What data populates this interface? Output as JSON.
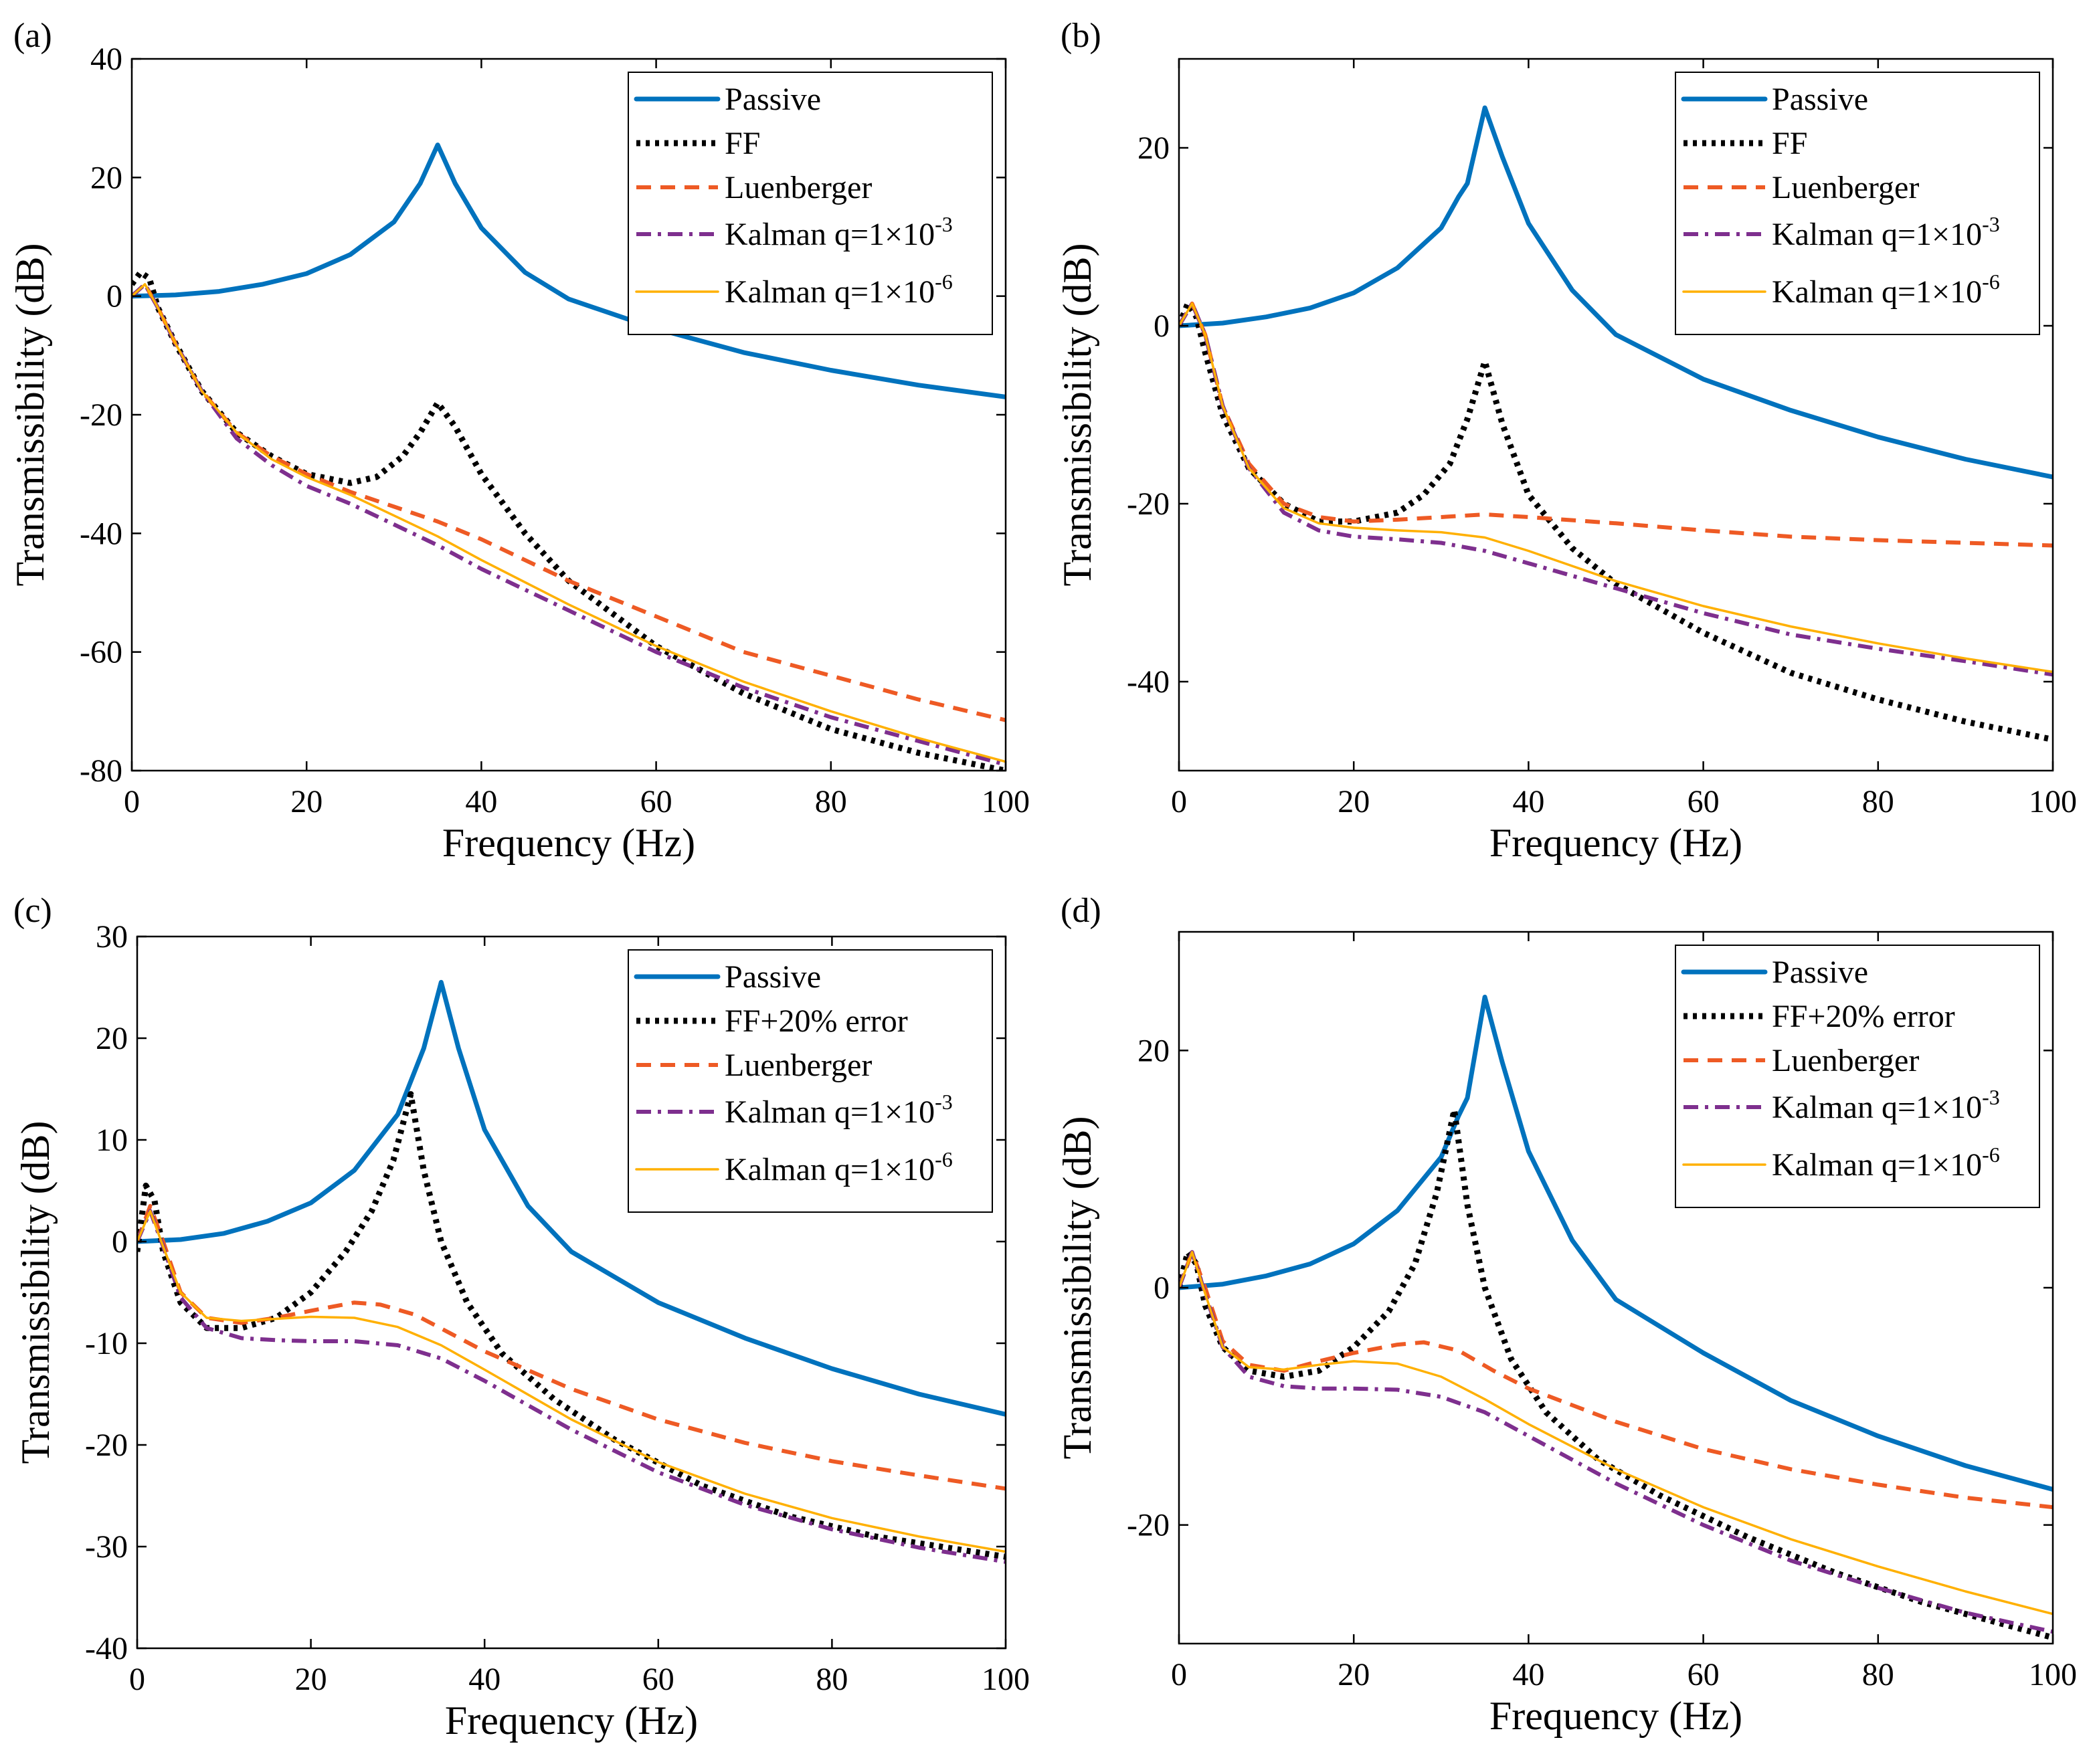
{
  "chart_data": [
    {
      "panel": "(a)",
      "type": "line",
      "xlabel": "Frequency (Hz)",
      "ylabel": "Transmissibility (dB)",
      "xlim": [
        0,
        100
      ],
      "ylim": [
        -80,
        40
      ],
      "xticks": [
        0,
        20,
        40,
        60,
        80,
        100
      ],
      "yticks": [
        -80,
        -60,
        -40,
        -20,
        0,
        20,
        40
      ],
      "legend_position": "top-right",
      "series": [
        {
          "name": "Passive",
          "label_main": "Passive",
          "label_sup": "",
          "color": "#0072BD",
          "style": "solid-thick",
          "x": [
            0,
            5,
            10,
            15,
            20,
            25,
            30,
            33,
            35,
            37,
            40,
            45,
            50,
            60,
            70,
            80,
            90,
            100
          ],
          "y": [
            0,
            0.2,
            0.8,
            2,
            3.8,
            7,
            12.5,
            19,
            25.5,
            19,
            11.5,
            4,
            -0.5,
            -5.5,
            -9.5,
            -12.5,
            -15,
            -17
          ]
        },
        {
          "name": "FF",
          "label_main": "FF",
          "label_sup": "",
          "color": "#000000",
          "style": "dotted",
          "x": [
            0,
            1,
            2,
            3,
            5,
            8,
            12,
            16,
            20,
            25,
            28,
            31,
            33,
            35,
            37,
            40,
            45,
            50,
            60,
            70,
            80,
            90,
            100
          ],
          "y": [
            2,
            4,
            3,
            -2,
            -8,
            -16,
            -23,
            -27,
            -30,
            -31.5,
            -30.5,
            -27,
            -23,
            -18,
            -22,
            -30,
            -40,
            -48,
            -59,
            -67,
            -73,
            -77,
            -80
          ]
        },
        {
          "name": "Luenberger",
          "label_main": "Luenberger",
          "label_sup": "",
          "color": "#EE5A24",
          "style": "dashed",
          "x": [
            0,
            1.5,
            3,
            5,
            8,
            12,
            16,
            20,
            25,
            30,
            35,
            40,
            50,
            60,
            70,
            80,
            90,
            100
          ],
          "y": [
            0,
            2,
            -2,
            -8,
            -16,
            -23,
            -27,
            -30,
            -33,
            -35.5,
            -38,
            -41,
            -48,
            -54,
            -60,
            -64,
            -68,
            -71.5
          ]
        },
        {
          "name": "Kalman q=1×10^-3",
          "label_main": "Kalman q=1×10",
          "label_sup": "-3",
          "color": "#7E2F8E",
          "style": "dashdot",
          "x": [
            0,
            1.5,
            3,
            5,
            8,
            12,
            16,
            20,
            25,
            30,
            35,
            40,
            50,
            60,
            70,
            80,
            90,
            100
          ],
          "y": [
            0,
            2,
            -2,
            -8,
            -16,
            -24,
            -28.5,
            -32,
            -35,
            -38.5,
            -42,
            -46,
            -53,
            -60,
            -66,
            -71,
            -75,
            -79
          ]
        },
        {
          "name": "Kalman q=1×10^-6",
          "label_main": "Kalman q=1×10",
          "label_sup": "-6",
          "color": "#FFB000",
          "style": "solid-thin",
          "x": [
            0,
            1.5,
            3,
            5,
            8,
            12,
            16,
            20,
            25,
            30,
            35,
            40,
            50,
            60,
            70,
            80,
            90,
            100
          ],
          "y": [
            0,
            2,
            -2,
            -8,
            -16,
            -23,
            -27.5,
            -30.5,
            -33.5,
            -37,
            -40.5,
            -44.5,
            -52,
            -59,
            -65,
            -70,
            -74.5,
            -78.5
          ]
        }
      ]
    },
    {
      "panel": "(b)",
      "type": "line",
      "xlabel": "Frequency (Hz)",
      "ylabel": "Transmissibility (dB)",
      "xlim": [
        0,
        100
      ],
      "ylim": [
        -50,
        30
      ],
      "xticks": [
        0,
        20,
        40,
        60,
        80,
        100
      ],
      "yticks": [
        -40,
        -20,
        0,
        20
      ],
      "legend_position": "top-right",
      "series": [
        {
          "name": "Passive",
          "label_main": "Passive",
          "label_sup": "",
          "color": "#0072BD",
          "style": "solid-thick",
          "x": [
            0,
            5,
            10,
            15,
            20,
            25,
            30,
            32,
            33,
            35,
            37,
            40,
            45,
            50,
            60,
            70,
            80,
            90,
            100
          ],
          "y": [
            0,
            0.3,
            1,
            2,
            3.7,
            6.5,
            11,
            14.5,
            16,
            24.5,
            19,
            11.5,
            4,
            -1,
            -6,
            -9.5,
            -12.5,
            -15,
            -17
          ]
        },
        {
          "name": "FF",
          "label_main": "FF",
          "label_sup": "",
          "color": "#000000",
          "style": "dotted",
          "x": [
            0,
            1,
            2,
            3,
            5,
            8,
            12,
            16,
            20,
            25,
            28,
            31,
            33,
            35,
            37,
            40,
            45,
            50,
            60,
            70,
            80,
            90,
            100
          ],
          "y": [
            0,
            2.5,
            1,
            -3,
            -10,
            -16,
            -20,
            -22,
            -22,
            -21,
            -19,
            -15.5,
            -10.5,
            -4,
            -11,
            -19,
            -25,
            -29,
            -34.5,
            -39,
            -42,
            -44.5,
            -46.5
          ]
        },
        {
          "name": "Luenberger",
          "label_main": "Luenberger",
          "label_sup": "",
          "color": "#EE5A24",
          "style": "dashed",
          "x": [
            0,
            1.5,
            3,
            5,
            8,
            12,
            16,
            20,
            25,
            30,
            35,
            40,
            50,
            60,
            70,
            80,
            90,
            100
          ],
          "y": [
            0,
            2.5,
            -1,
            -9,
            -15.5,
            -20,
            -21.5,
            -22,
            -21.8,
            -21.5,
            -21.2,
            -21.5,
            -22.2,
            -23,
            -23.7,
            -24.1,
            -24.4,
            -24.7
          ]
        },
        {
          "name": "Kalman q=1×10^-3",
          "label_main": "Kalman q=1×10",
          "label_sup": "-3",
          "color": "#7E2F8E",
          "style": "dashdot",
          "x": [
            0,
            1.5,
            3,
            5,
            8,
            12,
            16,
            20,
            25,
            30,
            35,
            40,
            50,
            60,
            70,
            80,
            90,
            100
          ],
          "y": [
            0,
            2.5,
            -1,
            -9,
            -16,
            -21,
            -23,
            -23.7,
            -24,
            -24.4,
            -25.3,
            -26.7,
            -29.5,
            -32.3,
            -34.7,
            -36.3,
            -37.7,
            -39.2
          ]
        },
        {
          "name": "Kalman q=1×10^-6",
          "label_main": "Kalman q=1×10",
          "label_sup": "-6",
          "color": "#FFB000",
          "style": "solid-thin",
          "x": [
            0,
            1.5,
            3,
            5,
            8,
            12,
            16,
            20,
            25,
            30,
            35,
            40,
            50,
            60,
            70,
            80,
            90,
            100
          ],
          "y": [
            0,
            2.5,
            -1,
            -9,
            -16,
            -20.5,
            -22.2,
            -22.7,
            -23,
            -23.2,
            -23.8,
            -25.3,
            -28.7,
            -31.5,
            -33.8,
            -35.7,
            -37.4,
            -38.9
          ]
        }
      ]
    },
    {
      "panel": "(c)",
      "type": "line",
      "xlabel": "Frequency (Hz)",
      "ylabel": "Transmissibility (dB)",
      "xlim": [
        0,
        100
      ],
      "ylim": [
        -40,
        30
      ],
      "xticks": [
        0,
        20,
        40,
        60,
        80,
        100
      ],
      "yticks": [
        -40,
        -30,
        -20,
        -10,
        0,
        10,
        20,
        30
      ],
      "legend_position": "top-right",
      "series": [
        {
          "name": "Passive",
          "label_main": "Passive",
          "label_sup": "",
          "color": "#0072BD",
          "style": "solid-thick",
          "x": [
            0,
            5,
            10,
            15,
            20,
            25,
            30,
            33,
            35,
            37,
            40,
            45,
            50,
            60,
            70,
            80,
            90,
            100
          ],
          "y": [
            0,
            0.2,
            0.8,
            2,
            3.8,
            7,
            12.5,
            19,
            25.5,
            19,
            11,
            3.5,
            -1,
            -6,
            -9.5,
            -12.5,
            -15,
            -17
          ]
        },
        {
          "name": "FF+20% error",
          "label_main": "FF+20% error",
          "label_sup": "",
          "color": "#000000",
          "style": "dotted",
          "x": [
            0,
            1,
            2,
            3,
            5,
            8,
            12,
            16,
            20,
            24,
            27,
            29.5,
            31.5,
            33,
            35,
            38,
            42,
            48,
            55,
            65,
            75,
            85,
            100
          ],
          "y": [
            -1,
            5.5,
            4,
            -1,
            -6,
            -8.5,
            -8.5,
            -7.5,
            -5,
            -1,
            3,
            8,
            14.5,
            7,
            0,
            -6,
            -11,
            -15.5,
            -19.5,
            -24,
            -27,
            -29,
            -31
          ]
        },
        {
          "name": "Luenberger",
          "label_main": "Luenberger",
          "label_sup": "",
          "color": "#EE5A24",
          "style": "dashed",
          "x": [
            0,
            1.5,
            3,
            5,
            8,
            12,
            16,
            20,
            25,
            28,
            32,
            36,
            40,
            50,
            60,
            70,
            80,
            90,
            100
          ],
          "y": [
            0,
            3.5,
            0,
            -5,
            -7.5,
            -8,
            -7.5,
            -6.8,
            -6,
            -6.2,
            -7.2,
            -9,
            -10.8,
            -14.5,
            -17.5,
            -19.8,
            -21.6,
            -23,
            -24.3
          ]
        },
        {
          "name": "Kalman q=1×10^-3",
          "label_main": "Kalman q=1×10",
          "label_sup": "-3",
          "color": "#7E2F8E",
          "style": "dashdot",
          "x": [
            0,
            1.5,
            3,
            5,
            8,
            12,
            16,
            20,
            25,
            30,
            35,
            40,
            50,
            60,
            70,
            80,
            90,
            100
          ],
          "y": [
            0,
            3,
            -0.5,
            -5.5,
            -8.5,
            -9.5,
            -9.7,
            -9.8,
            -9.8,
            -10.2,
            -11.5,
            -13.7,
            -18.5,
            -22.7,
            -25.9,
            -28.3,
            -30.1,
            -31.5
          ]
        },
        {
          "name": "Kalman q=1×10^-6",
          "label_main": "Kalman q=1×10",
          "label_sup": "-6",
          "color": "#FFB000",
          "style": "solid-thin",
          "x": [
            0,
            1.5,
            3,
            5,
            8,
            12,
            16,
            20,
            25,
            30,
            35,
            40,
            50,
            60,
            70,
            80,
            90,
            100
          ],
          "y": [
            0,
            3,
            -0.5,
            -5,
            -7.5,
            -7.8,
            -7.6,
            -7.4,
            -7.5,
            -8.4,
            -10.2,
            -12.6,
            -17.5,
            -21.7,
            -24.8,
            -27.2,
            -29,
            -30.5
          ]
        }
      ]
    },
    {
      "panel": "(d)",
      "type": "line",
      "xlabel": "Frequency (Hz)",
      "ylabel": "Transmissibility (dB)",
      "xlim": [
        0,
        100
      ],
      "ylim": [
        -30,
        30
      ],
      "xticks": [
        0,
        20,
        40,
        60,
        80,
        100
      ],
      "yticks": [
        -20,
        0,
        20
      ],
      "legend_position": "top-right",
      "series": [
        {
          "name": "Passive",
          "label_main": "Passive",
          "label_sup": "",
          "color": "#0072BD",
          "style": "solid-thick",
          "x": [
            0,
            5,
            10,
            15,
            20,
            25,
            30,
            32,
            33,
            35,
            37,
            40,
            45,
            50,
            60,
            70,
            80,
            90,
            100
          ],
          "y": [
            0,
            0.3,
            1,
            2,
            3.7,
            6.5,
            11,
            14.5,
            16,
            24.5,
            19,
            11.5,
            4,
            -1,
            -5.5,
            -9.5,
            -12.5,
            -15,
            -17
          ]
        },
        {
          "name": "FF+20% error",
          "label_main": "FF+20% error",
          "label_sup": "",
          "color": "#000000",
          "style": "dotted",
          "x": [
            0,
            1,
            2,
            3,
            5,
            8,
            12,
            16,
            20,
            24,
            27,
            29.5,
            31.5,
            33,
            35,
            38,
            42,
            48,
            55,
            65,
            75,
            85,
            100
          ],
          "y": [
            0,
            3,
            2,
            -1.5,
            -5,
            -7,
            -7.5,
            -7,
            -5,
            -2,
            2,
            8,
            15,
            7,
            0,
            -6,
            -10.5,
            -14.5,
            -17.5,
            -21,
            -24,
            -26.5,
            -29.5
          ]
        },
        {
          "name": "Luenberger",
          "label_main": "Luenberger",
          "label_sup": "",
          "color": "#EE5A24",
          "style": "dashed",
          "x": [
            0,
            1.5,
            3,
            5,
            8,
            12,
            16,
            20,
            25,
            28,
            32,
            36,
            40,
            50,
            60,
            70,
            80,
            90,
            100
          ],
          "y": [
            0,
            3,
            0,
            -4.5,
            -6.5,
            -7,
            -6.2,
            -5.5,
            -4.8,
            -4.6,
            -5.3,
            -7,
            -8.5,
            -11.3,
            -13.6,
            -15.3,
            -16.6,
            -17.7,
            -18.5
          ]
        },
        {
          "name": "Kalman q=1×10^-3",
          "label_main": "Kalman q=1×10",
          "label_sup": "-3",
          "color": "#7E2F8E",
          "style": "dashdot",
          "x": [
            0,
            1.5,
            3,
            5,
            8,
            12,
            16,
            20,
            25,
            30,
            35,
            40,
            50,
            60,
            70,
            80,
            90,
            100
          ],
          "y": [
            0,
            3,
            -0.5,
            -5,
            -7.5,
            -8.3,
            -8.5,
            -8.5,
            -8.6,
            -9.2,
            -10.5,
            -12.5,
            -16.5,
            -20,
            -23,
            -25.3,
            -27.4,
            -29
          ]
        },
        {
          "name": "Kalman q=1×10^-6",
          "label_main": "Kalman q=1×10",
          "label_sup": "-6",
          "color": "#FFB000",
          "style": "solid-thin",
          "x": [
            0,
            1.5,
            3,
            5,
            8,
            12,
            16,
            20,
            25,
            30,
            35,
            40,
            50,
            60,
            70,
            80,
            90,
            100
          ],
          "y": [
            0,
            3,
            -0.5,
            -5,
            -6.7,
            -6.9,
            -6.5,
            -6.2,
            -6.4,
            -7.5,
            -9.4,
            -11.5,
            -15.3,
            -18.5,
            -21.2,
            -23.5,
            -25.6,
            -27.5
          ]
        }
      ]
    }
  ]
}
